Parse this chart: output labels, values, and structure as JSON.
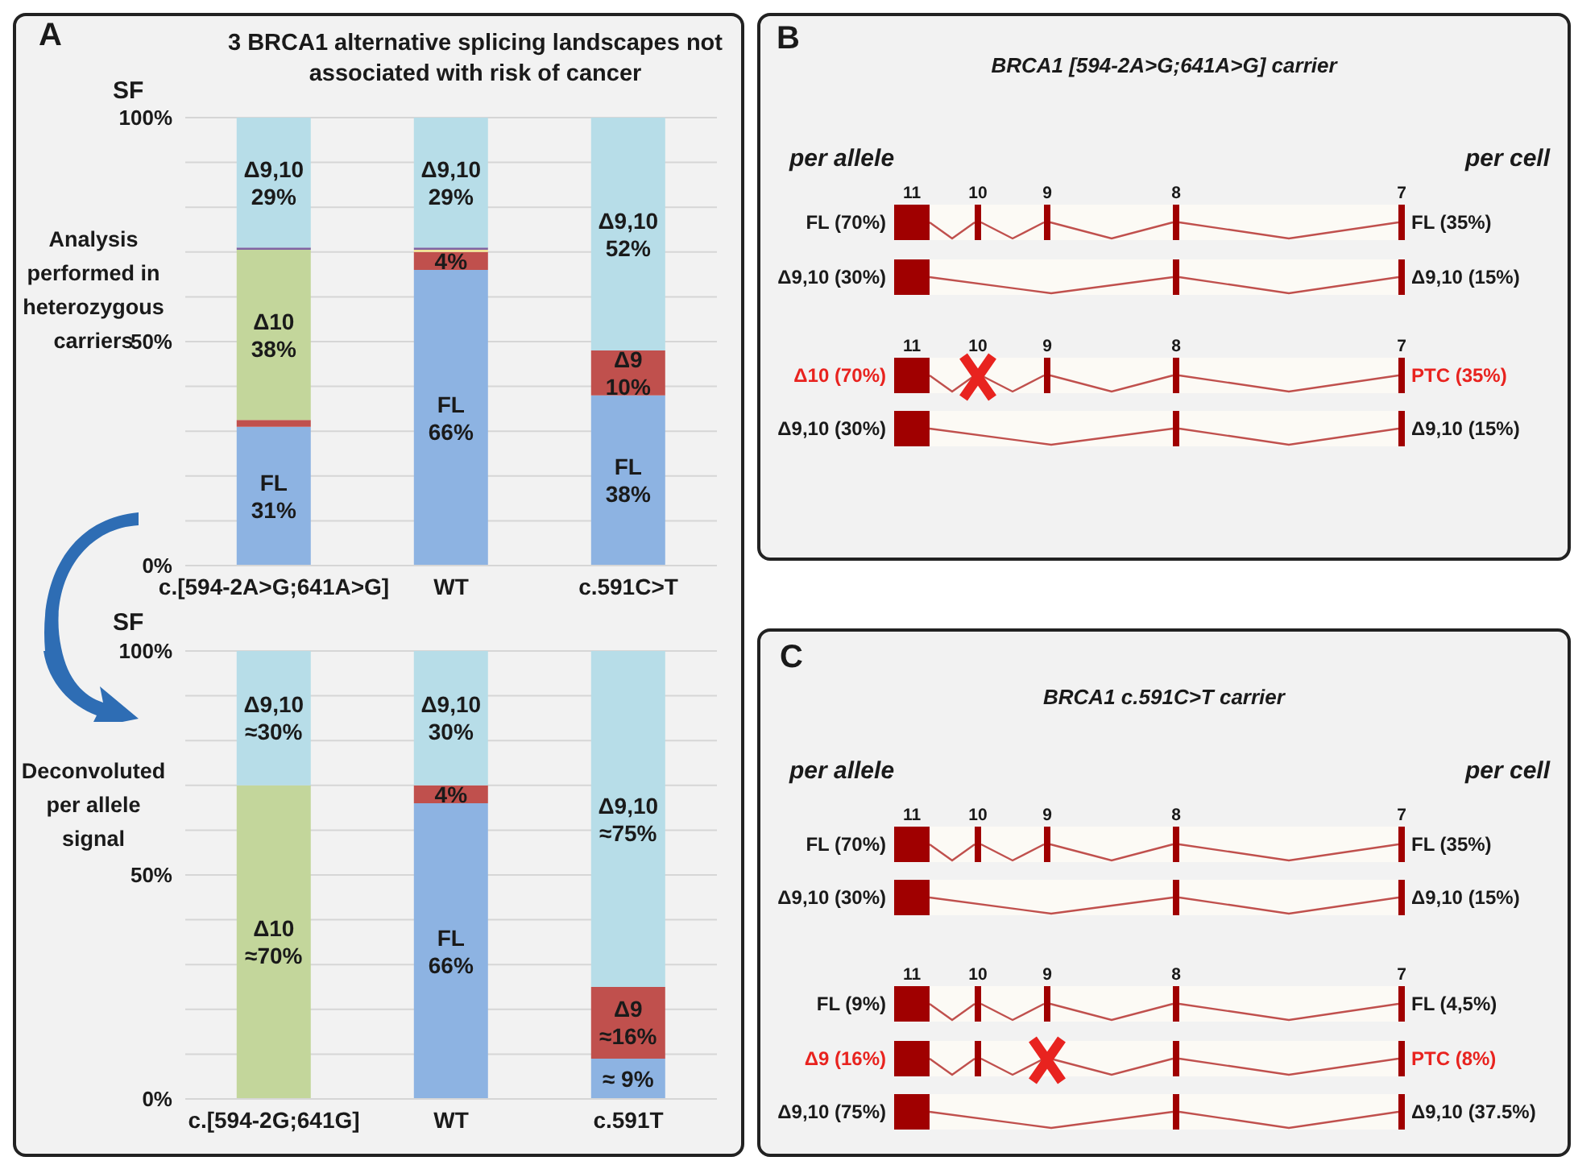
{
  "chart_data": [
    {
      "type": "bar",
      "stacked": true,
      "title": "3 BRCA1 alternative splicing landscapes not associated with risk of cancer",
      "ylabel": "SF",
      "categories": [
        "c.[594-2A>G;641A>G]",
        "WT",
        "c.591C>T"
      ],
      "series": [
        {
          "color": "#8db3e2",
          "values": [
            31,
            66,
            38
          ],
          "value_labels": [
            "FL\n31%",
            "FL\n66%",
            "FL\n38%"
          ]
        },
        {
          "color": "#c0504d",
          "values": [
            1.5,
            4,
            10
          ],
          "value_labels": [
            null,
            "4%",
            "Δ9\n10%"
          ]
        },
        {
          "color": "#c3d69b",
          "values": [
            38,
            0,
            0
          ],
          "value_labels": [
            "Δ10\n38%",
            null,
            null
          ]
        },
        {
          "color": "#f2e394",
          "values": [
            0,
            0.5,
            0
          ],
          "value_labels": [
            null,
            null,
            null
          ]
        },
        {
          "color": "#8064a2",
          "values": [
            0.5,
            0.5,
            0
          ],
          "value_labels": [
            null,
            null,
            null
          ]
        },
        {
          "color": "#b7dde8",
          "values": [
            29,
            29,
            52
          ],
          "value_labels": [
            "Δ9,10\n29%",
            "Δ9,10\n29%",
            "Δ9,10\n52%"
          ]
        }
      ],
      "ylim": [
        0,
        100
      ],
      "yticks": [
        {
          "value": 0,
          "label": "0%"
        },
        {
          "value": 10,
          "label": null
        },
        {
          "value": 20,
          "label": null
        },
        {
          "value": 30,
          "label": null
        },
        {
          "value": 40,
          "label": null
        },
        {
          "value": 50,
          "label": "50%"
        },
        {
          "value": 60,
          "label": null
        },
        {
          "value": 70,
          "label": null
        },
        {
          "value": 80,
          "label": null
        },
        {
          "value": 90,
          "label": null
        },
        {
          "value": 100,
          "label": "100%"
        }
      ],
      "grid": "y",
      "annotations": [
        "A",
        "Analysis performed in heterozygous carriers"
      ]
    },
    {
      "type": "bar",
      "stacked": true,
      "ylabel": "SF",
      "categories": [
        "c.[594-2G;641G]",
        "WT",
        "c.591T"
      ],
      "series": [
        {
          "color": "#8db3e2",
          "values": [
            0,
            66,
            9
          ],
          "value_labels": [
            null,
            "FL\n66%",
            "≈ 9%"
          ]
        },
        {
          "color": "#c0504d",
          "values": [
            0,
            4,
            16
          ],
          "value_labels": [
            null,
            "4%",
            "Δ9\n≈16%"
          ]
        },
        {
          "color": "#c3d69b",
          "values": [
            70,
            0,
            0
          ],
          "value_labels": [
            "Δ10\n≈70%",
            null,
            null
          ]
        },
        {
          "color": "#b7dde8",
          "values": [
            30,
            30,
            75
          ],
          "value_labels": [
            "Δ9,10\n≈30%",
            "Δ9,10\n30%",
            "Δ9,10\n≈75%"
          ]
        }
      ],
      "ylim": [
        0,
        100
      ],
      "yticks": [
        {
          "value": 0,
          "label": "0%"
        },
        {
          "value": 10,
          "label": null
        },
        {
          "value": 20,
          "label": null
        },
        {
          "value": 30,
          "label": null
        },
        {
          "value": 40,
          "label": null
        },
        {
          "value": 50,
          "label": "50%"
        },
        {
          "value": 60,
          "label": null
        },
        {
          "value": 70,
          "label": null
        },
        {
          "value": 80,
          "label": null
        },
        {
          "value": 90,
          "label": null
        },
        {
          "value": 100,
          "label": "100%"
        }
      ],
      "grid": "y",
      "annotations": [
        "Deconvoluted per allele signal"
      ]
    },
    {
      "type": "other",
      "title": "BRCA1 [594-2A>G;641A>G] carrier",
      "annotations": [
        "B",
        "per allele",
        "per cell",
        "11",
        "10",
        "9",
        "8",
        "7",
        "FL (70%)",
        "FL (35%)",
        "Δ9,10 (30%)",
        "Δ9,10 (15%)",
        "11",
        "10",
        "9",
        "8",
        "7",
        "Δ10 (70%)",
        "PTC (35%)",
        "Δ9,10 (30%)",
        "Δ9,10 (15%)"
      ]
    },
    {
      "type": "other",
      "title": "BRCA1 c.591C>T carrier",
      "annotations": [
        "C",
        "per allele",
        "per cell",
        "11",
        "10",
        "9",
        "8",
        "7",
        "FL (70%)",
        "FL (35%)",
        "Δ9,10 (30%)",
        "Δ9,10 (15%)",
        "11",
        "10",
        "9",
        "8",
        "7",
        "FL (9%)",
        "FL (4,5%)",
        "Δ9 (16%)",
        "PTC (8%)",
        "Δ9,10 (75%)",
        "Δ9,10 (37.5%)"
      ]
    }
  ]
}
